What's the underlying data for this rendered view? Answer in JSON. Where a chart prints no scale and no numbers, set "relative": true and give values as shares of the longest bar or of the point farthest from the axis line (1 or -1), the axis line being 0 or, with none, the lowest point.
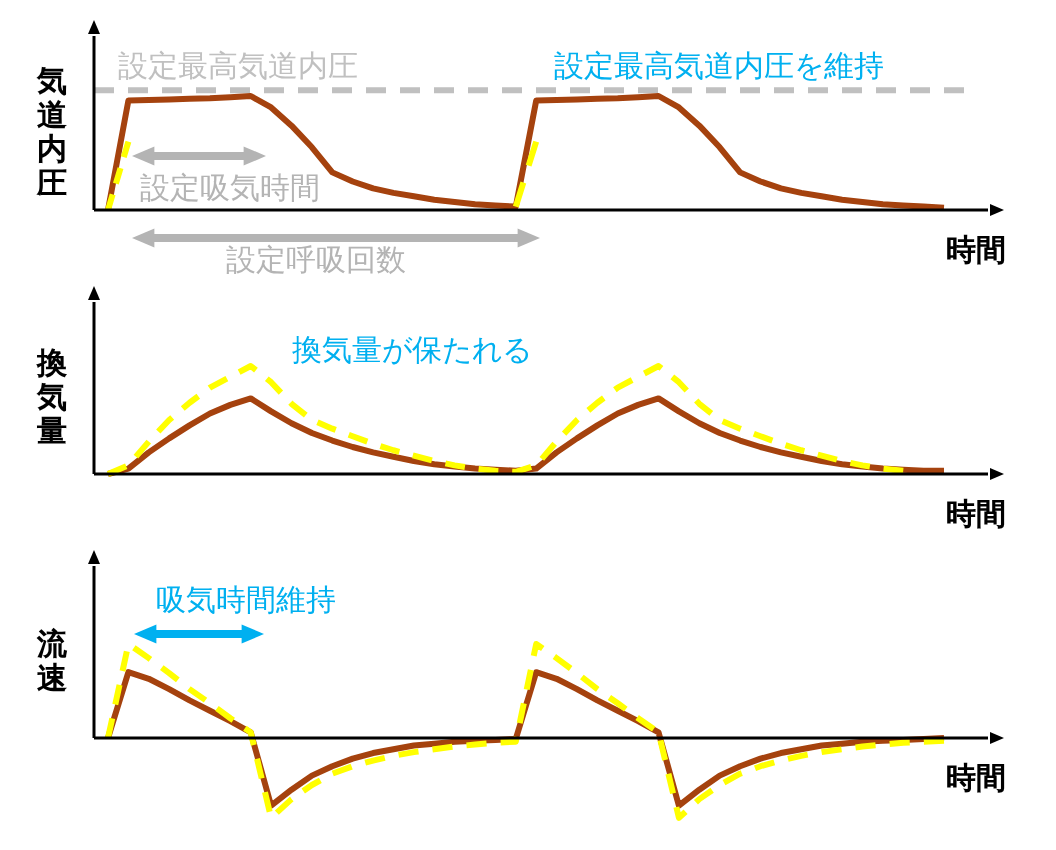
{
  "chart_data": [
    {
      "type": "line",
      "ylabel": "気道内圧",
      "xlabel": "時間",
      "relative": true,
      "categories": [
        null,
        null,
        null,
        null,
        null,
        null,
        null,
        null,
        null,
        null,
        null,
        null,
        null,
        null,
        null,
        null,
        null,
        null,
        null,
        null,
        null,
        null,
        null,
        null,
        null,
        null,
        null,
        null,
        null,
        null,
        null,
        null,
        null,
        null,
        null,
        null,
        null,
        null,
        null,
        null,
        null,
        null
      ],
      "series": [
        {
          "color": "#a5420e",
          "line_style": "solid",
          "values": [
            0,
            0.96,
            0.965,
            0.97,
            0.975,
            0.98,
            0.99,
            1,
            0.9,
            0.74,
            0.55,
            0.33,
            0.25,
            0.19,
            0.15,
            0.12,
            0.09,
            0.07,
            0.05,
            0.04,
            0.03,
            0.96,
            0.965,
            0.97,
            0.975,
            0.98,
            0.99,
            1,
            0.9,
            0.74,
            0.55,
            0.33,
            0.25,
            0.19,
            0.15,
            0.12,
            0.09,
            0.07,
            0.05,
            0.04,
            0.03,
            0.02
          ]
        },
        {
          "color": "#ffff00",
          "line_style": "dashed",
          "values": [
            0,
            0.6,
            null,
            null,
            null,
            null,
            null,
            null,
            null,
            null,
            null,
            null,
            null,
            null,
            null,
            null,
            null,
            null,
            null,
            null,
            0.03,
            0.6,
            null,
            null,
            null,
            null,
            null,
            null,
            null,
            null,
            null,
            null,
            null,
            null,
            null,
            null,
            null,
            null,
            null,
            null,
            null,
            null
          ]
        }
      ],
      "ref_lines": [
        {
          "axis": "y",
          "value": 1.05,
          "label": "設定最高気道内圧",
          "color": "#c0c0c0",
          "line_style": "dashed"
        }
      ],
      "annotations": [
        "設定最高気道内圧を維持",
        "設定吸気時間",
        "設定呼吸回数"
      ]
    },
    {
      "type": "line",
      "ylabel": "換気量",
      "xlabel": "時間",
      "relative": true,
      "categories": [
        null,
        null,
        null,
        null,
        null,
        null,
        null,
        null,
        null,
        null,
        null,
        null,
        null,
        null,
        null,
        null,
        null,
        null,
        null,
        null,
        null,
        null,
        null,
        null,
        null,
        null,
        null,
        null,
        null,
        null,
        null,
        null,
        null,
        null,
        null,
        null,
        null,
        null,
        null,
        null,
        null,
        null
      ],
      "series": [
        {
          "color": "#a5420e",
          "line_style": "solid",
          "values": [
            0,
            0.05,
            0.2,
            0.33,
            0.45,
            0.56,
            0.64,
            0.7,
            0.58,
            0.47,
            0.38,
            0.31,
            0.25,
            0.2,
            0.16,
            0.12,
            0.09,
            0.07,
            0.05,
            0.04,
            0.03,
            0.05,
            0.2,
            0.33,
            0.45,
            0.56,
            0.64,
            0.7,
            0.58,
            0.47,
            0.38,
            0.31,
            0.25,
            0.2,
            0.16,
            0.12,
            0.09,
            0.07,
            0.05,
            0.04,
            0.03,
            0.03
          ]
        },
        {
          "color": "#ffff00",
          "line_style": "dashed",
          "values": [
            0,
            0.08,
            0.3,
            0.5,
            0.66,
            0.8,
            0.9,
            1,
            0.85,
            0.65,
            0.5,
            0.42,
            0.35,
            0.28,
            0.22,
            0.17,
            0.12,
            0.08,
            0.05,
            0.03,
            0.02,
            0.08,
            0.3,
            0.5,
            0.66,
            0.8,
            0.9,
            1,
            0.85,
            0.65,
            0.5,
            0.42,
            0.35,
            0.28,
            0.22,
            0.17,
            0.12,
            0.08,
            0.05,
            0.03,
            null,
            null
          ]
        }
      ],
      "annotations": [
        "換気量が保たれる"
      ]
    },
    {
      "type": "line",
      "ylabel": "流速",
      "xlabel": "時間",
      "relative": true,
      "categories": [
        null,
        null,
        null,
        null,
        null,
        null,
        null,
        null,
        null,
        null,
        null,
        null,
        null,
        null,
        null,
        null,
        null,
        null,
        null,
        null,
        null,
        null,
        null,
        null,
        null,
        null,
        null,
        null,
        null,
        null,
        null,
        null,
        null,
        null,
        null,
        null,
        null,
        null,
        null,
        null,
        null,
        null
      ],
      "series": [
        {
          "color": "#a5420e",
          "line_style": "solid",
          "values": [
            0,
            0.7,
            0.63,
            0.52,
            0.4,
            0.29,
            0.18,
            0.06,
            -0.72,
            -0.55,
            -0.4,
            -0.3,
            -0.22,
            -0.16,
            -0.12,
            -0.08,
            -0.06,
            -0.04,
            -0.03,
            -0.02,
            -0.01,
            0.7,
            0.63,
            0.52,
            0.4,
            0.29,
            0.18,
            0.06,
            -0.72,
            -0.55,
            -0.4,
            -0.3,
            -0.22,
            -0.16,
            -0.12,
            -0.08,
            -0.06,
            -0.04,
            -0.03,
            -0.02,
            -0.01,
            0
          ]
        },
        {
          "color": "#ffff00",
          "line_style": "dashed",
          "values": [
            0,
            1,
            0.85,
            0.69,
            0.52,
            0.37,
            0.21,
            0.06,
            -0.85,
            -0.65,
            -0.5,
            -0.38,
            -0.3,
            -0.24,
            -0.19,
            -0.15,
            -0.12,
            -0.09,
            -0.07,
            -0.05,
            -0.04,
            1,
            0.85,
            0.69,
            0.52,
            0.37,
            0.21,
            0.06,
            -0.85,
            -0.65,
            -0.5,
            -0.38,
            -0.3,
            -0.24,
            -0.19,
            -0.15,
            -0.12,
            -0.09,
            -0.07,
            -0.05,
            -0.04,
            -0.03
          ]
        }
      ],
      "annotations": [
        "吸気時間維持"
      ]
    }
  ]
}
